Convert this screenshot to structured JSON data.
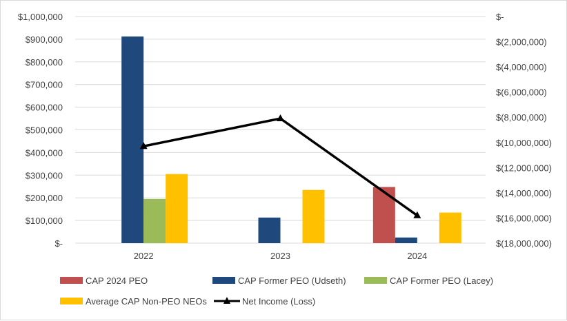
{
  "chart_data": {
    "type": "bar",
    "categories": [
      "2022",
      "2023",
      "2024"
    ],
    "grid": true,
    "legend_position": "bottom",
    "left_axis": {
      "range": [
        0,
        1000000
      ],
      "tick_labels": [
        "$-",
        "$100,000",
        "$200,000",
        "$300,000",
        "$400,000",
        "$500,000",
        "$600,000",
        "$700,000",
        "$800,000",
        "$900,000",
        "$1,000,000"
      ]
    },
    "right_axis": {
      "range": [
        -18000000,
        0
      ],
      "tick_labels": [
        "$(18,000,000)",
        "$(16,000,000)",
        "$(14,000,000)",
        "$(12,000,000)",
        "$(10,000,000)",
        "$(8,000,000)",
        "$(6,000,000)",
        "$(4,000,000)",
        "$(2,000,000)",
        "$-"
      ]
    },
    "series": [
      {
        "name": "CAP 2024 PEO",
        "type": "bar",
        "axis": "left",
        "color": "#c0504d",
        "values": [
          null,
          null,
          248000
        ]
      },
      {
        "name": "CAP Former PEO (Udseth)",
        "type": "bar",
        "axis": "left",
        "color": "#1f497d",
        "values": [
          912000,
          113000,
          25000
        ]
      },
      {
        "name": "CAP Former PEO (Lacey)",
        "type": "bar",
        "axis": "left",
        "color": "#9bbb59",
        "values": [
          195000,
          null,
          null
        ]
      },
      {
        "name": "Average CAP Non-PEO NEOs",
        "type": "bar",
        "axis": "left",
        "color": "#ffc000",
        "values": [
          305000,
          235000,
          135000
        ]
      },
      {
        "name": "Net Income (Loss)",
        "type": "line",
        "axis": "right",
        "color": "#000000",
        "values": [
          -10300000,
          -8100000,
          -15800000
        ]
      }
    ]
  }
}
